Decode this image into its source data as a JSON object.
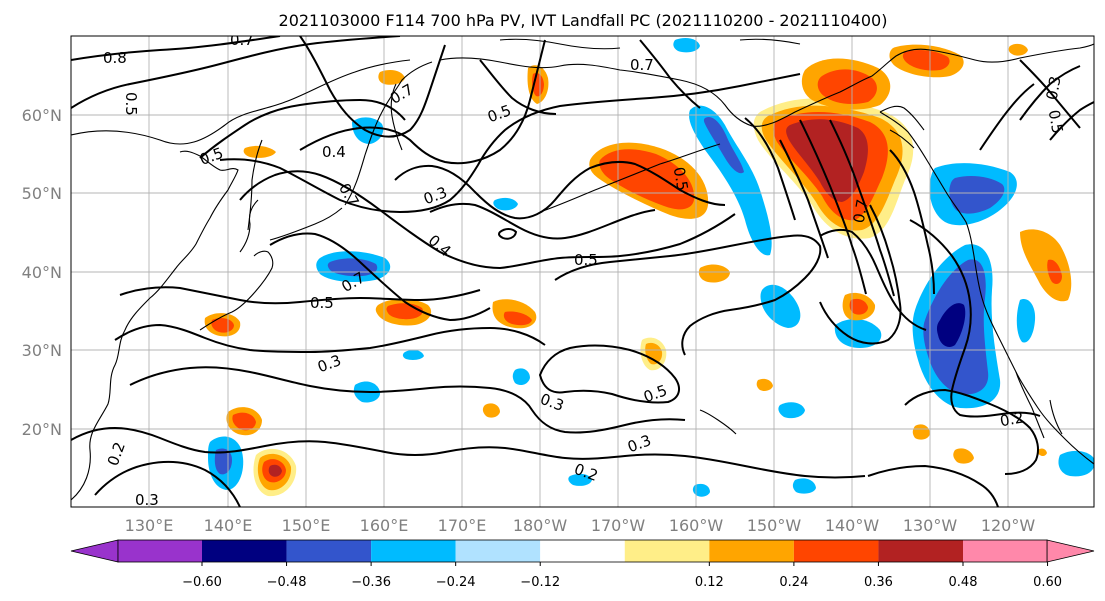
{
  "title": "2021103000 F114 700 hPa PV, IVT Landfall PC (2021110200 - 2021110400)",
  "map": {
    "projection": "cylindrical",
    "lon_range": [
      120,
      251
    ],
    "lat_range": [
      10,
      70
    ],
    "lat_ticks": [
      {
        "value": 20,
        "label": "20°N"
      },
      {
        "value": 30,
        "label": "30°N"
      },
      {
        "value": 40,
        "label": "40°N"
      },
      {
        "value": 50,
        "label": "50°N"
      },
      {
        "value": 60,
        "label": "60°N"
      }
    ],
    "lon_ticks": [
      {
        "value": 130,
        "label": "130°E"
      },
      {
        "value": 140,
        "label": "140°E"
      },
      {
        "value": 150,
        "label": "150°E"
      },
      {
        "value": 160,
        "label": "160°E"
      },
      {
        "value": 170,
        "label": "170°E"
      },
      {
        "value": 180,
        "label": "180°W"
      },
      {
        "value": 190,
        "label": "170°W"
      },
      {
        "value": 200,
        "label": "160°W"
      },
      {
        "value": 210,
        "label": "150°W"
      },
      {
        "value": 220,
        "label": "140°W"
      },
      {
        "value": 230,
        "label": "130°W"
      },
      {
        "value": 240,
        "label": "120°W"
      }
    ],
    "grid": true
  },
  "colorbar": {
    "orientation": "horizontal",
    "extend": "both",
    "colors": [
      "#9933cc",
      "#000080",
      "#3355cc",
      "#00bbff",
      "#b0e2ff",
      "#ffffff",
      "#ffee88",
      "#ffa500",
      "#ff4500",
      "#b22222",
      "#ff88aa"
    ],
    "tick_labels": [
      "−0.60",
      "−0.48",
      "−0.36",
      "−0.24",
      "−0.12",
      "0.12",
      "0.24",
      "0.36",
      "0.48",
      "0.60"
    ]
  },
  "contour_labels": [
    "0.8",
    "0.7",
    "0.5",
    "0.7",
    "0.5",
    "0.4",
    "0.3",
    "0.4",
    "0.5",
    "0.7",
    "0.5",
    "0.3",
    "0.5",
    "0.3",
    "0.5",
    "0.3",
    "0.2",
    "0.2",
    "0.3",
    "0.7",
    "0.5",
    "0.7",
    "0.2",
    "0.7",
    "0.3",
    "0.5"
  ]
}
